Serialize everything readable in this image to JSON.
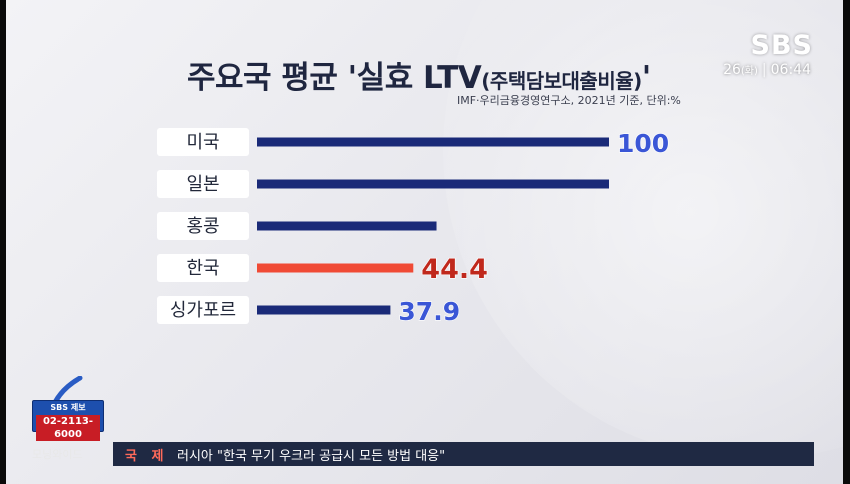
{
  "chart_data": {
    "type": "bar",
    "orientation": "horizontal",
    "title": "주요국 평균 '실효 LTV",
    "title_paren": "(주택담보대출비율)",
    "title_end": "'",
    "source": "IMF·우리금융경영연구소, 2021년 기준, 단위:%",
    "categories": [
      "미국",
      "일본",
      "홍콩",
      "한국",
      "싱가포르"
    ],
    "values": [
      100,
      100,
      51,
      44.4,
      37.9
    ],
    "value_labels": [
      "100",
      "",
      "",
      "44.4",
      "37.9"
    ],
    "highlight_category": "한국",
    "xlim": [
      0,
      100
    ],
    "grid": false,
    "legend": "none",
    "colors": {
      "bar": "#1a2a78",
      "highlight_bar": "#f04a35",
      "label": "#3a56d6",
      "highlight_label": "#c0281c"
    }
  },
  "broadcast": {
    "logo": "SBS",
    "date_day": "26",
    "date_weekday": "(화)",
    "time": "06:44",
    "hotline_title": "SBS 제보",
    "hotline_number": "02-2113-6000",
    "program": "모닝와이드",
    "ticker_section": "국 제",
    "ticker_headline": "러시아 \"한국 무기 우크라 공급시 모든 방법 대응\""
  }
}
